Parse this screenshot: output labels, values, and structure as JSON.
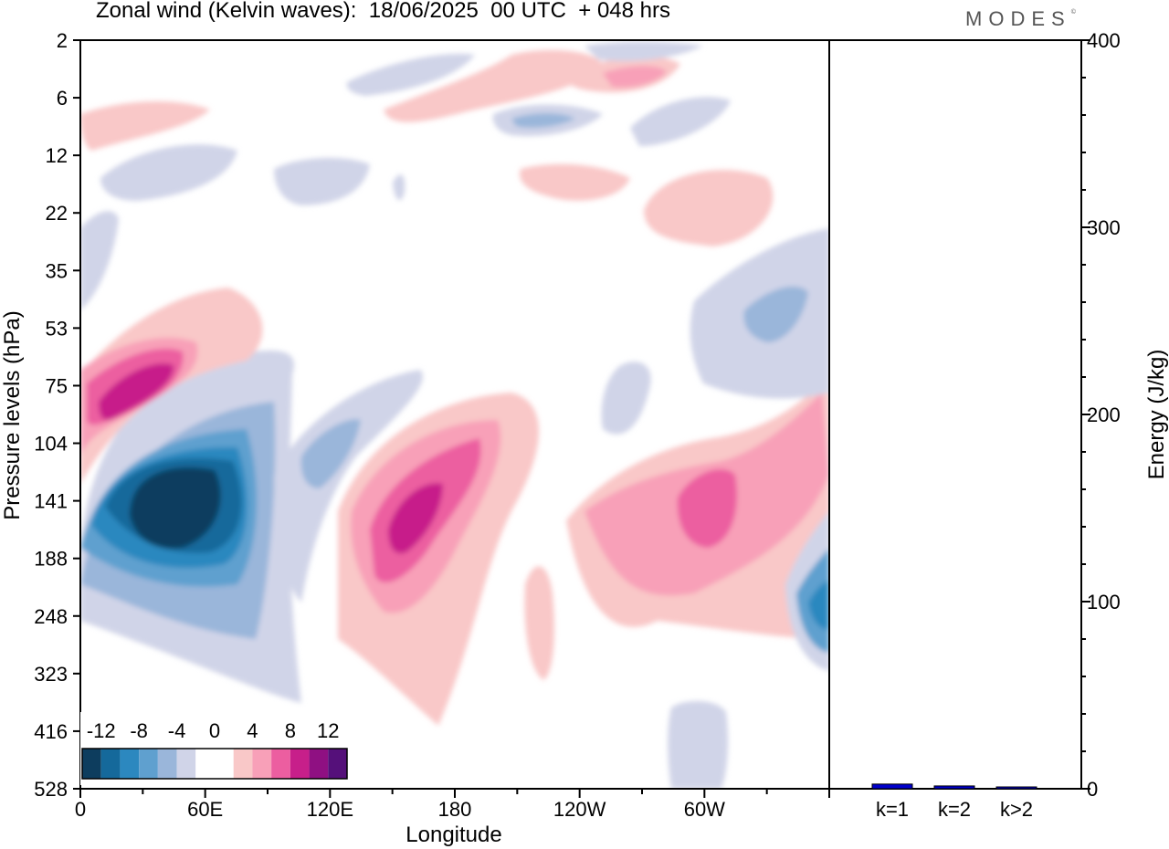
{
  "title": "Zonal wind (Kelvin waves):  18/06/2025  00 UTC  + 048 hrs",
  "brand": "MODES",
  "brand_mark": "©",
  "chart_data": [
    {
      "type": "heatmap",
      "title": "Zonal wind (Kelvin waves):  18/06/2025  00 UTC  + 048 hrs",
      "xlabel": "Longitude",
      "ylabel": "Pressure levels (hPa)",
      "x_ticks": [
        "0",
        "60E",
        "120E",
        "180",
        "120W",
        "60W"
      ],
      "x_tick_values": [
        0,
        60,
        120,
        180,
        240,
        300
      ],
      "xlim": [
        0,
        360
      ],
      "y_ticks": [
        "2",
        "6",
        "12",
        "22",
        "35",
        "53",
        "75",
        "104",
        "141",
        "188",
        "248",
        "323",
        "416",
        "528"
      ],
      "y_scale": "categorical pressure levels, top to bottom",
      "colorbar": {
        "labels": [
          "-12",
          "-8",
          "-4",
          "0",
          "4",
          "8",
          "12"
        ],
        "levels": [
          -14,
          -12,
          -10,
          -8,
          -6,
          -4,
          -2,
          0,
          2,
          4,
          6,
          8,
          10,
          12,
          14
        ],
        "colors": [
          "#0d3d5e",
          "#15699b",
          "#2c88bf",
          "#5fa0cf",
          "#9ab6da",
          "#d0d4e8",
          "#ffffff",
          "#ffffff",
          "#f9c8c8",
          "#f8a0b8",
          "#ec5ea0",
          "#c71f8a",
          "#8f1082",
          "#55107a"
        ]
      },
      "colors": {
        "neg_weak": "#d0d4e8",
        "neg_2": "#9ab6da",
        "neg_3": "#5fa0cf",
        "neg_4": "#2c88bf",
        "neg_5": "#15699b",
        "neg_strong": "#0d3d5e",
        "pos_weak": "#f9c8c8",
        "pos_2": "#f8a0b8",
        "pos_3": "#ec5ea0",
        "pos_4": "#c71f8a"
      },
      "features": [
        {
          "lon": 40,
          "level": "141",
          "value": -13
        },
        {
          "lon": 20,
          "level": "75",
          "value": 9
        },
        {
          "lon": 155,
          "level": "141",
          "value": 9
        },
        {
          "lon": 290,
          "level": "141",
          "value": 7
        },
        {
          "lon": 355,
          "level": "248",
          "value": -7
        },
        {
          "lon": 330,
          "level": "53",
          "value": -4
        },
        {
          "lon": 230,
          "level": "6",
          "value": 6
        }
      ]
    },
    {
      "type": "bar",
      "ylabel": "Energy (J/kg)",
      "ylim": [
        0,
        400
      ],
      "y_ticks": [
        "0",
        "100",
        "200",
        "300",
        "400"
      ],
      "categories": [
        "k=1",
        "k=2",
        "k>2"
      ],
      "values": [
        2.5,
        1.5,
        0.5
      ],
      "bar_color": "#0000cc"
    }
  ]
}
